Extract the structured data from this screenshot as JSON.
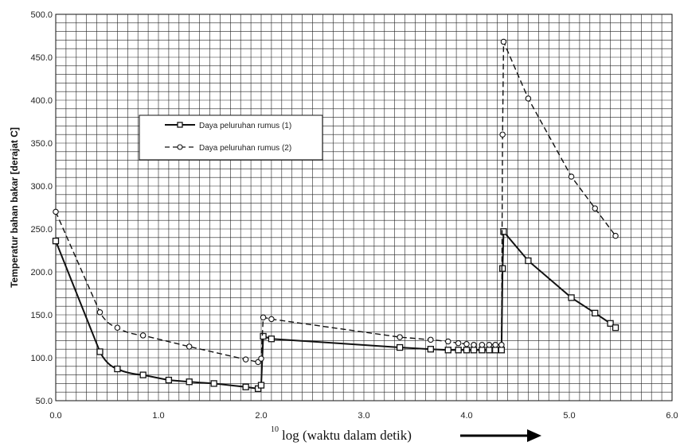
{
  "chart_data": {
    "type": "line",
    "xlabel_super": "10",
    "xlabel": "log (waktu dalam detik)",
    "ylabel": "Temperatur bahan bakar [derajat C]",
    "xlim": [
      0.0,
      6.0
    ],
    "ylim": [
      50.0,
      500.0
    ],
    "xticks": [
      "0.0",
      "1.0",
      "2.0",
      "3.0",
      "4.0",
      "5.0",
      "6.0"
    ],
    "yticks": [
      "50.0",
      "100.0",
      "150.0",
      "200.0",
      "250.0",
      "300.0",
      "350.0",
      "400.0",
      "450.0",
      "500.0"
    ],
    "grid": true,
    "legend_position": "upper-left-center",
    "colors": {
      "line": "#111111",
      "grid": "#222222",
      "background": "#ffffff"
    },
    "series": [
      {
        "name": "Daya peluruhan rumus (1)",
        "marker": "square",
        "line_style": "solid",
        "x": [
          0.0,
          0.43,
          0.6,
          0.85,
          1.1,
          1.3,
          1.54,
          1.85,
          1.97,
          2.0,
          2.02,
          2.1,
          3.35,
          3.65,
          3.82,
          3.92,
          4.0,
          4.07,
          4.15,
          4.22,
          4.28,
          4.34,
          4.35,
          4.36,
          4.6,
          5.02,
          5.25,
          5.4,
          5.45
        ],
        "y": [
          236,
          107,
          87,
          80,
          74,
          72,
          70,
          66,
          64,
          68,
          125,
          122,
          112,
          110,
          109,
          109,
          109,
          109,
          109,
          109,
          109,
          109,
          204,
          247,
          213,
          170,
          152,
          140,
          135
        ]
      },
      {
        "name": "Daya peluruhan rumus (2)",
        "marker": "circle",
        "line_style": "dashed",
        "x": [
          0.0,
          0.43,
          0.6,
          0.85,
          1.3,
          1.85,
          1.97,
          2.0,
          2.02,
          2.1,
          3.35,
          3.65,
          3.82,
          3.92,
          4.0,
          4.07,
          4.15,
          4.22,
          4.28,
          4.34,
          4.35,
          4.36,
          4.6,
          5.02,
          5.25,
          5.45
        ],
        "y": [
          270,
          153,
          135,
          126,
          113,
          98,
          95,
          99,
          147,
          145,
          124,
          121,
          119,
          117,
          116,
          115,
          115,
          115,
          115,
          115,
          360,
          468,
          402,
          311,
          274,
          242
        ]
      }
    ]
  }
}
